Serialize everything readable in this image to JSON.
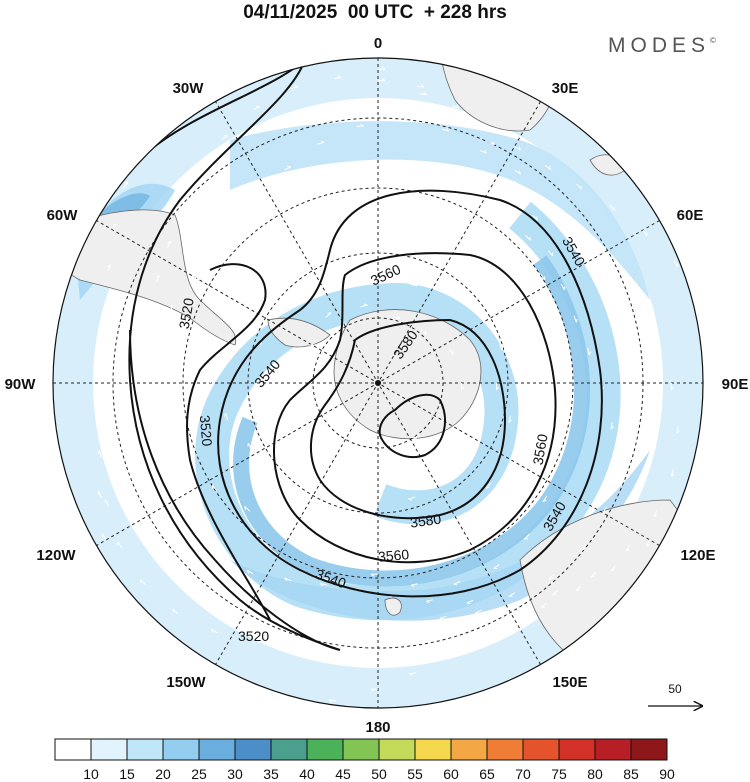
{
  "title": {
    "date": "04/11/2025",
    "run": "00 UTC",
    "lead": "+ 228 hrs"
  },
  "brand": {
    "name": "MODES",
    "mark": "©"
  },
  "longitude_labels": {
    "lon_0": "0",
    "lon_30e": "30E",
    "lon_60e": "60E",
    "lon_90e": "90E",
    "lon_120e": "120E",
    "lon_150e": "150E",
    "lon_180": "180",
    "lon_150w": "150W",
    "lon_120w": "120W",
    "lon_90w": "90W",
    "lon_60w": "60W",
    "lon_30w": "30W"
  },
  "contours": {
    "units": "geopotential height (m)",
    "labels": [
      {
        "id": "c3560_top",
        "text": "3560"
      },
      {
        "id": "c3540_ne",
        "text": "3540"
      },
      {
        "id": "c3520_w",
        "text": "3520"
      },
      {
        "id": "c3580_n",
        "text": "3580"
      },
      {
        "id": "c3540_w",
        "text": "3540"
      },
      {
        "id": "c3520_sw",
        "text": "3520"
      },
      {
        "id": "c3560_e",
        "text": "3560"
      },
      {
        "id": "c3580_s",
        "text": "3580"
      },
      {
        "id": "c3540_se",
        "text": "3540"
      },
      {
        "id": "c3560_s",
        "text": "3560"
      },
      {
        "id": "c3540_s",
        "text": "3540"
      },
      {
        "id": "c3520_bottom",
        "text": "3520"
      }
    ]
  },
  "vector_scale": {
    "value": "50"
  },
  "colorbar": {
    "ticks": [
      "10",
      "15",
      "20",
      "25",
      "30",
      "35",
      "40",
      "45",
      "50",
      "55",
      "60",
      "65",
      "70",
      "75",
      "80",
      "85",
      "90"
    ],
    "colors": [
      "#ffffff",
      "#e1f3fc",
      "#bfe6f9",
      "#93cdef",
      "#6aaee0",
      "#4c8fc8",
      "#4aa08d",
      "#4cb25a",
      "#82c555",
      "#c3da5a",
      "#f5d84e",
      "#f3a845",
      "#ef7d35",
      "#e4532b",
      "#d33027",
      "#b71e26",
      "#8e1719"
    ]
  }
}
